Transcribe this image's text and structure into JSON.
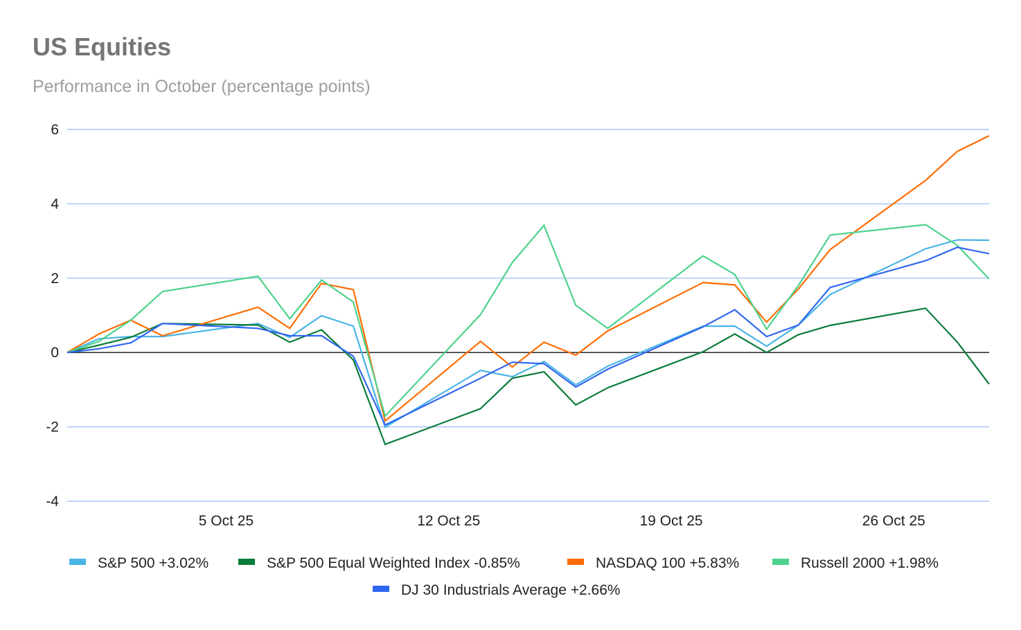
{
  "chart_data": {
    "type": "line",
    "title": "US Equities",
    "subtitle": "Performance in October (percentage points)",
    "xlabel": "",
    "ylabel": "",
    "ylim": [
      -4,
      6
    ],
    "yticks": [
      6,
      4,
      2,
      0,
      -2,
      -4
    ],
    "ytick_labels": [
      "6",
      "4",
      "2",
      "0",
      "-2",
      "-4"
    ],
    "x_day_range": [
      0,
      29
    ],
    "xticks": [
      {
        "day": 5,
        "label": "5 Oct 25"
      },
      {
        "day": 12,
        "label": "12 Oct 25"
      },
      {
        "day": 19,
        "label": "19 Oct 25"
      },
      {
        "day": 26,
        "label": "26 Oct 25"
      }
    ],
    "x_days": [
      0,
      1,
      2,
      3,
      6,
      7,
      8,
      9,
      10,
      13,
      14,
      15,
      16,
      17,
      20,
      21,
      22,
      23,
      24,
      27,
      28,
      29
    ],
    "grid": true,
    "legend_position": "bottom",
    "series": [
      {
        "name": "S&P 500 +3.02%",
        "color": "#4ab4e6",
        "values": [
          0,
          0.37,
          0.43,
          0.43,
          0.78,
          0.41,
          0.99,
          0.71,
          -2.01,
          -0.48,
          -0.65,
          -0.24,
          -0.87,
          -0.37,
          0.71,
          0.71,
          0.17,
          0.74,
          1.56,
          2.79,
          3.03,
          3.02
        ]
      },
      {
        "name": "S&P 500 Equal Weighted Index -0.85%",
        "color": "#0a7c3a",
        "values": [
          0,
          0.2,
          0.41,
          0.78,
          0.74,
          0.28,
          0.61,
          -0.2,
          -2.47,
          -1.51,
          -0.69,
          -0.52,
          -1.41,
          -0.95,
          0.02,
          0.5,
          0.0,
          0.48,
          0.73,
          1.19,
          0.28,
          -0.85
        ]
      },
      {
        "name": "NASDAQ 100 +5.83%",
        "color": "#ff6d01",
        "values": [
          0,
          0.5,
          0.87,
          0.45,
          1.22,
          0.65,
          1.86,
          1.69,
          -1.84,
          0.3,
          -0.39,
          0.28,
          -0.07,
          0.58,
          1.88,
          1.82,
          0.82,
          1.71,
          2.77,
          4.63,
          5.41,
          5.83
        ]
      },
      {
        "name": "Russell 2000 +1.98%",
        "color": "#4dd28c",
        "values": [
          0,
          0.3,
          0.87,
          1.64,
          2.05,
          0.91,
          1.95,
          1.36,
          -1.71,
          1.02,
          2.42,
          3.42,
          1.27,
          0.65,
          2.6,
          2.1,
          0.63,
          1.8,
          3.16,
          3.44,
          2.88,
          1.98
        ]
      },
      {
        "name": "DJ 30 Industrials Average +2.66%",
        "color": "#2f66f0",
        "values": [
          0,
          0.1,
          0.26,
          0.78,
          0.65,
          0.45,
          0.45,
          -0.1,
          -1.95,
          -0.69,
          -0.26,
          -0.3,
          -0.93,
          -0.45,
          0.69,
          1.15,
          0.43,
          0.74,
          1.75,
          2.47,
          2.83,
          2.66
        ]
      }
    ],
    "colors": {
      "gridline": "#a4c2f4",
      "zero_line": "#333333"
    }
  }
}
